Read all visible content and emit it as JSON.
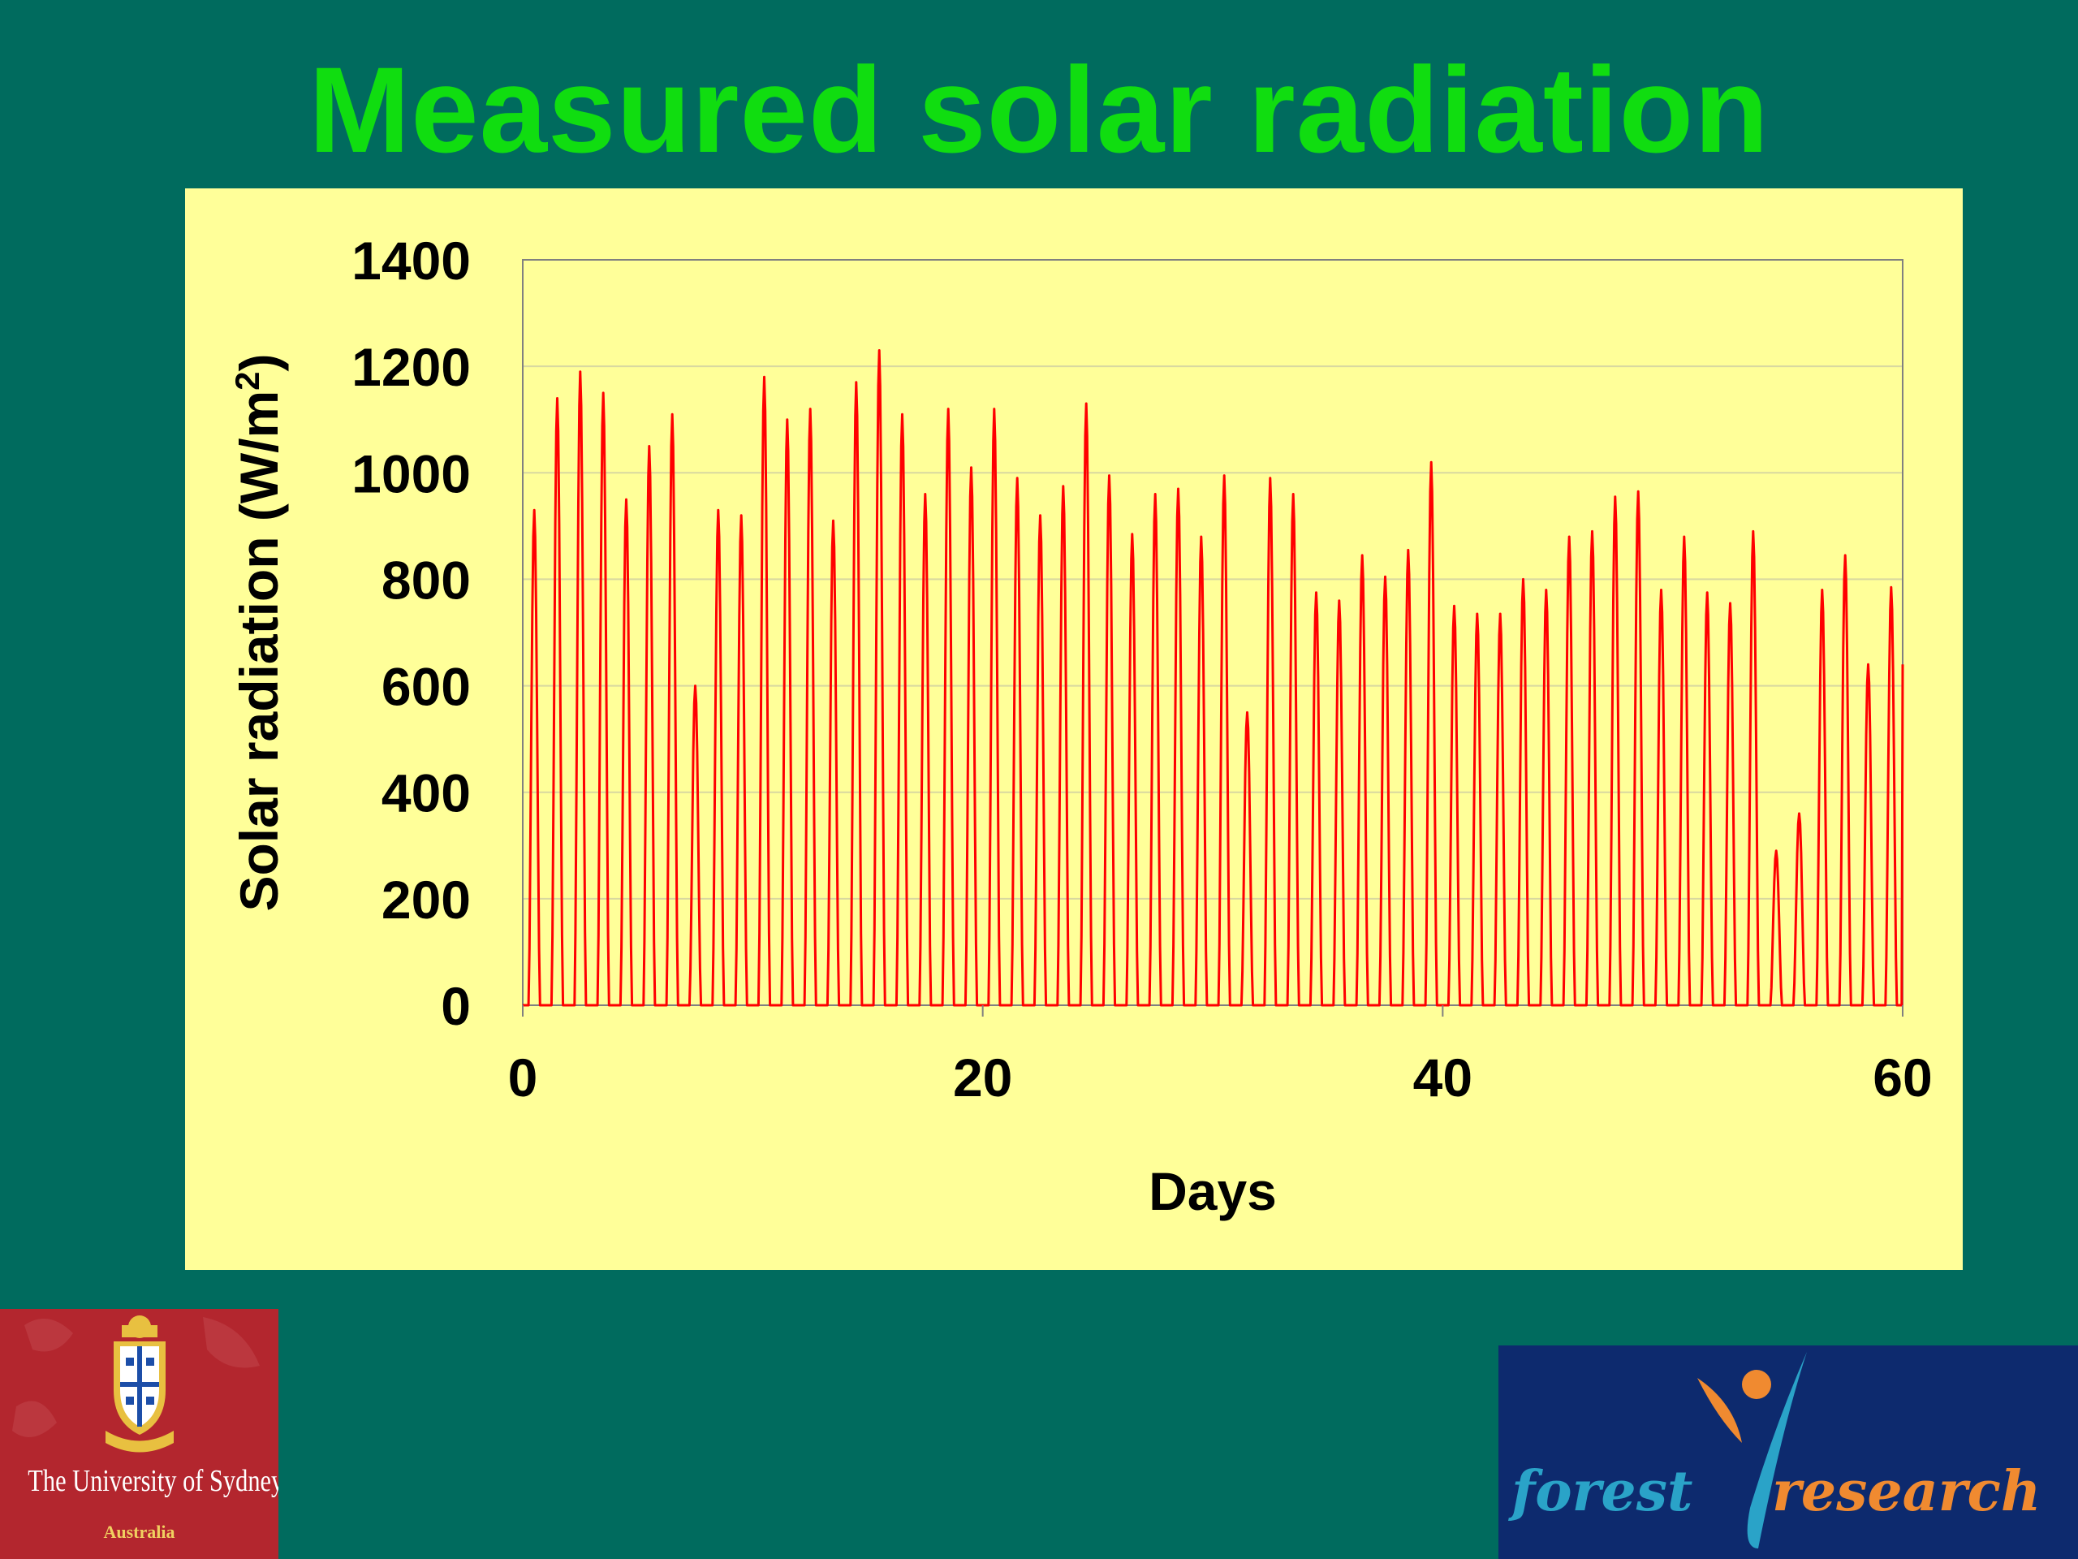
{
  "slide": {
    "title": "Measured solar radiation"
  },
  "chart_data": {
    "type": "line",
    "ylabel": "Solar radiation (W/m",
    "ylabel_sup": "2",
    "ylabel_close": ")",
    "xlabel": "Days",
    "xlim": [
      0,
      60
    ],
    "ylim": [
      0,
      1400
    ],
    "xticks": [
      0,
      20,
      40,
      60
    ],
    "yticks": [
      0,
      200,
      400,
      600,
      800,
      1000,
      1200,
      1400
    ],
    "grid": "horizontal",
    "series": [
      {
        "color": "#ff0000",
        "daily_peaks": [
          930,
          1140,
          1190,
          1150,
          950,
          1050,
          1110,
          600,
          930,
          920,
          1180,
          1100,
          1120,
          910,
          1170,
          1230,
          1110,
          960,
          1120,
          1010,
          1120,
          990,
          920,
          975,
          1130,
          995,
          885,
          960,
          970,
          880,
          995,
          550,
          990,
          960,
          775,
          760,
          845,
          805,
          855,
          1020,
          750,
          735,
          735,
          800,
          780,
          880,
          890,
          955,
          965,
          780,
          880,
          775,
          755,
          890,
          290,
          360,
          780,
          845,
          640,
          785,
          640
        ]
      }
    ]
  },
  "logos": {
    "usyd": {
      "name": "The University of Sydney",
      "sub": "Australia"
    },
    "forest_research": {
      "word1": "forest",
      "word2": "research"
    }
  },
  "colors": {
    "background": "#006b5e",
    "title": "#10dd10",
    "panel": "#ffff99",
    "line": "#ff0000"
  }
}
